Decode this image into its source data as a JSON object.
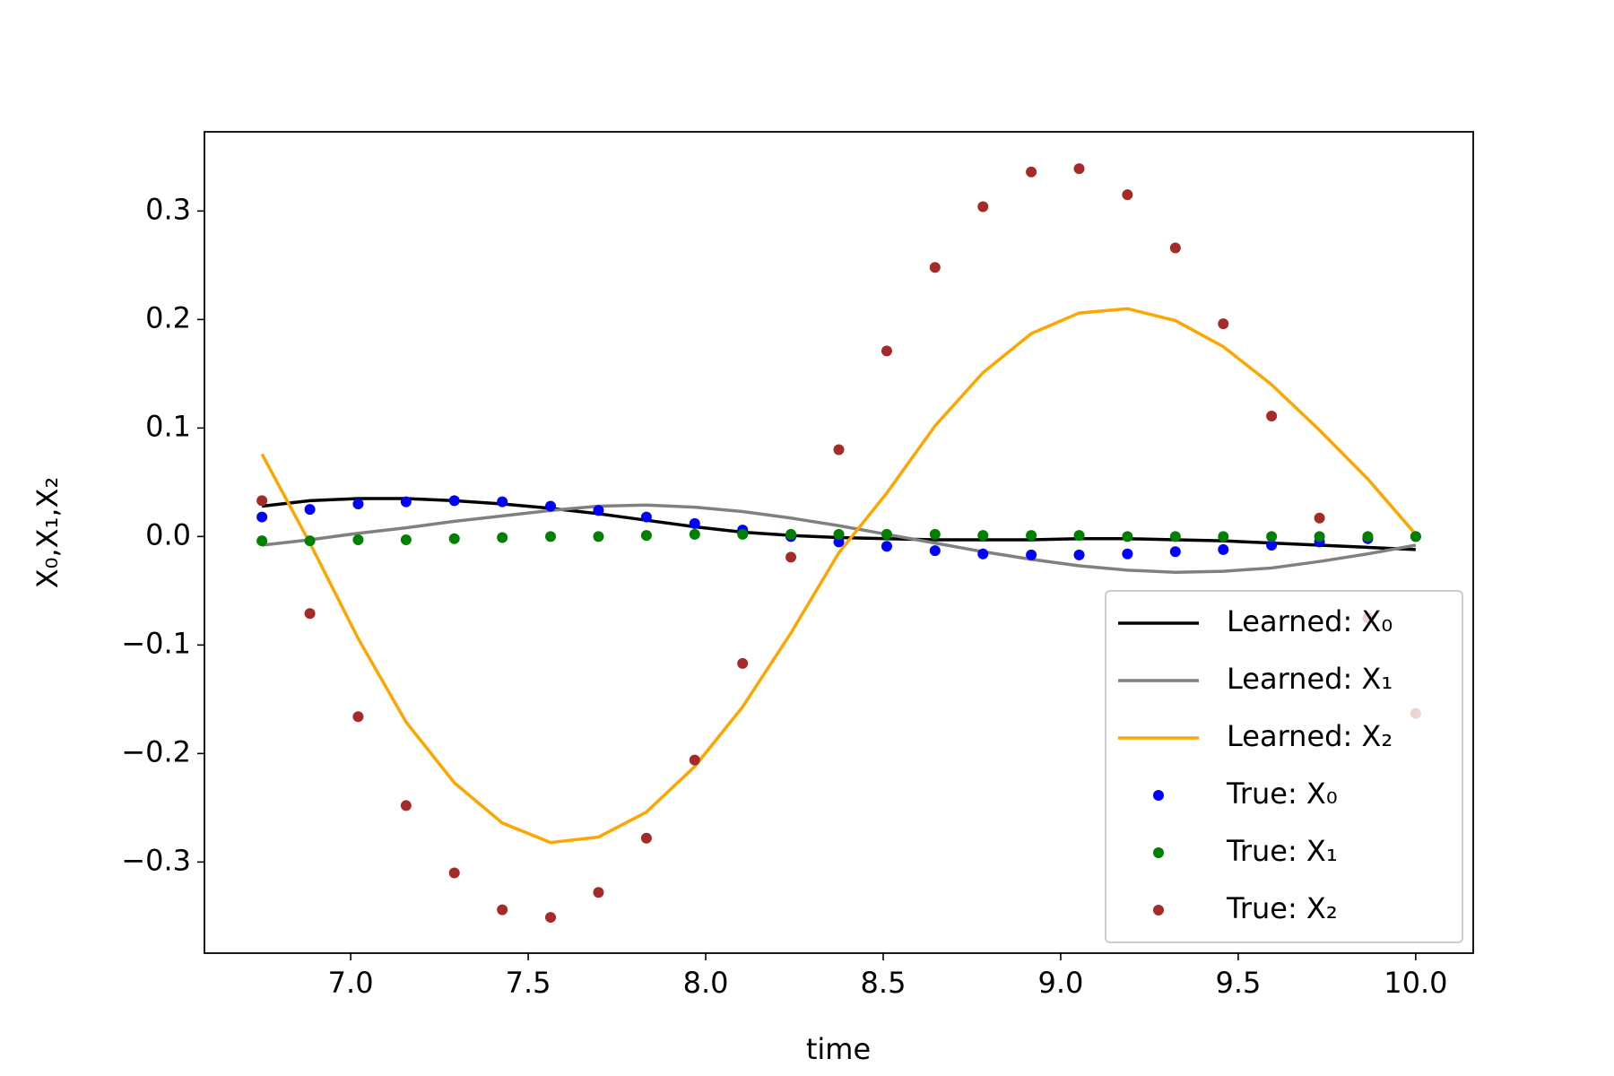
{
  "chart_data": {
    "type": "line",
    "x_label": "time",
    "y_label": "X₀,X₁,X₂",
    "x": [
      6.75,
      6.885,
      7.021,
      7.156,
      7.292,
      7.427,
      7.563,
      7.698,
      7.833,
      7.969,
      8.104,
      8.24,
      8.375,
      8.51,
      8.646,
      8.781,
      8.917,
      9.052,
      9.188,
      9.323,
      9.458,
      9.594,
      9.729,
      9.865,
      10.0
    ],
    "xlim": [
      6.588,
      10.162
    ],
    "ylim": [
      -0.384,
      0.373
    ],
    "xticks": [
      {
        "value": 7,
        "label": "7.0"
      },
      7.5,
      {
        "value": 8,
        "label": "8.0"
      },
      8.5,
      {
        "value": 9,
        "label": "9.0"
      },
      9.5,
      {
        "value": 10,
        "label": "10.0"
      }
    ],
    "yticks": [
      {
        "value": -0.3,
        "label": "−0.3"
      },
      {
        "value": -0.2,
        "label": "−0.2"
      },
      {
        "value": -0.1,
        "label": "−0.1"
      },
      {
        "value": 0,
        "label": "0.0"
      },
      0.1,
      0.2,
      0.3
    ],
    "legend": "lower right",
    "series": [
      {
        "name": "Learned: X₀",
        "type": "line",
        "color": "#000000",
        "values": [
          0.028,
          0.033,
          0.035,
          0.035,
          0.033,
          0.03,
          0.026,
          0.021,
          0.015,
          0.009,
          0.004,
          0.001,
          -0.001,
          -0.002,
          -0.003,
          -0.003,
          -0.003,
          -0.002,
          -0.002,
          -0.003,
          -0.004,
          -0.006,
          -0.008,
          -0.01,
          -0.012
        ]
      },
      {
        "name": "Learned: X₁",
        "type": "line",
        "color": "#808080",
        "values": [
          -0.008,
          -0.003,
          0.003,
          0.008,
          0.014,
          0.019,
          0.024,
          0.028,
          0.029,
          0.027,
          0.023,
          0.017,
          0.01,
          0.002,
          -0.006,
          -0.014,
          -0.021,
          -0.027,
          -0.031,
          -0.033,
          -0.032,
          -0.029,
          -0.023,
          -0.016,
          -0.008
        ]
      },
      {
        "name": "Learned: X₂",
        "type": "line",
        "color": "#ffa500",
        "values": [
          0.076,
          -0.006,
          -0.094,
          -0.171,
          -0.227,
          -0.264,
          -0.282,
          -0.277,
          -0.254,
          -0.212,
          -0.157,
          -0.089,
          -0.015,
          0.04,
          0.102,
          0.151,
          0.187,
          0.206,
          0.21,
          0.199,
          0.175,
          0.14,
          0.098,
          0.053,
          0.002
        ]
      },
      {
        "name": "True: X₀",
        "type": "scatter",
        "color": "#0000ff",
        "values": [
          0.018,
          0.025,
          0.03,
          0.032,
          0.033,
          0.032,
          0.028,
          0.024,
          0.018,
          0.012,
          0.006,
          0.0,
          -0.005,
          -0.009,
          -0.013,
          -0.016,
          -0.017,
          -0.017,
          -0.016,
          -0.014,
          -0.012,
          -0.008,
          -0.005,
          -0.002,
          0.0
        ]
      },
      {
        "name": "True: X₁",
        "type": "scatter",
        "color": "#008000",
        "values": [
          -0.004,
          -0.004,
          -0.003,
          -0.003,
          -0.002,
          -0.001,
          0.0,
          0.0,
          0.001,
          0.002,
          0.002,
          0.002,
          0.002,
          0.002,
          0.002,
          0.001,
          0.001,
          0.001,
          0.0,
          0.0,
          0.0,
          0.0,
          0.0,
          0.0,
          0.0
        ]
      },
      {
        "name": "True: X₂",
        "type": "scatter",
        "color": "#a52a2a",
        "values": [
          0.033,
          -0.071,
          -0.166,
          -0.248,
          -0.31,
          -0.344,
          -0.351,
          -0.328,
          -0.278,
          -0.206,
          -0.117,
          -0.019,
          0.08,
          0.171,
          0.248,
          0.304,
          0.336,
          0.339,
          0.315,
          0.266,
          0.196,
          0.111,
          0.017,
          -0.075,
          -0.163
        ]
      }
    ]
  }
}
